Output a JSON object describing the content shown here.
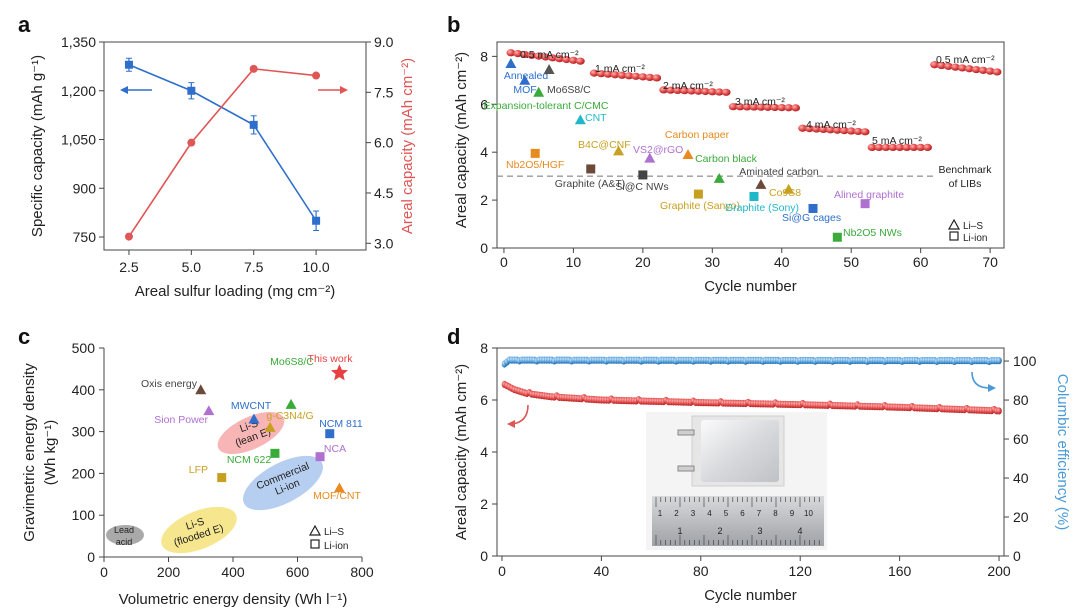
{
  "colors": {
    "blue": "#2f6fcb",
    "red": "#e05555",
    "lightblue": "#4a9ad8",
    "dark": "#222222"
  },
  "chart_data": [
    {
      "panel": "a",
      "type": "line",
      "xlabel": "Areal sulfur loading (mg cm⁻²)",
      "ylabel_left": "Specific capacity (mAh g⁻¹)",
      "ylabel_right": "Areal capacity (mAh cm⁻²)",
      "xticks": [
        "2.5",
        "5.0",
        "7.5",
        "10.0"
      ],
      "yticks_left": [
        "750",
        "900",
        "1,050",
        "1,200",
        "1,350"
      ],
      "yticks_right": [
        "3.0",
        "4.5",
        "6.0",
        "7.5",
        "9.0"
      ],
      "xlim": [
        1.5,
        12.0
      ],
      "ylim_left": [
        710,
        1350
      ],
      "ylim_right": [
        2.8,
        9.0
      ],
      "series": [
        {
          "name": "Specific capacity",
          "axis": "left",
          "x": [
            2.5,
            5.0,
            7.5,
            10.0
          ],
          "values": [
            1280,
            1200,
            1095,
            800
          ],
          "err": [
            20,
            25,
            28,
            30
          ]
        },
        {
          "name": "Areal capacity",
          "axis": "right",
          "x": [
            2.5,
            5.0,
            7.5,
            10.0
          ],
          "values": [
            3.2,
            6.0,
            8.2,
            8.0
          ]
        }
      ]
    },
    {
      "panel": "b",
      "type": "scatter",
      "xlabel": "Cycle number",
      "ylabel": "Areal capacity (mAh cm⁻²)",
      "xticks": [
        "0",
        "10",
        "20",
        "30",
        "40",
        "50",
        "60",
        "70"
      ],
      "yticks": [
        "0",
        "2",
        "4",
        "6",
        "8"
      ],
      "xlim": [
        -1,
        72
      ],
      "ylim": [
        0,
        8.6
      ],
      "benchmark": 3.0,
      "benchmark_label": [
        "Benchmark",
        "of LIBs"
      ],
      "rate_segments": [
        {
          "label": "0.5 mA cm⁻²",
          "x_start": 1,
          "x_end": 11,
          "y_start": 8.15,
          "y_end": 7.8
        },
        {
          "label": "1 mA cm⁻²",
          "x_start": 13,
          "x_end": 22,
          "y_start": 7.3,
          "y_end": 7.1
        },
        {
          "label": "2 mA cm⁻²",
          "x_start": 23,
          "x_end": 32,
          "y_start": 6.6,
          "y_end": 6.5
        },
        {
          "label": "3 mA cm⁻²",
          "x_start": 33,
          "x_end": 42,
          "y_start": 5.9,
          "y_end": 5.85
        },
        {
          "label": "4 mA cm⁻²",
          "x_start": 43,
          "x_end": 52,
          "y_start": 5.0,
          "y_end": 4.85
        },
        {
          "label": "5 mA cm⁻²",
          "x_start": 53,
          "x_end": 61,
          "y_start": 4.2,
          "y_end": 4.2
        },
        {
          "label": "0.5 mA cm⁻²",
          "x_start": 62,
          "x_end": 71,
          "y_start": 7.65,
          "y_end": 7.35
        }
      ],
      "references": [
        {
          "label": "Annealed",
          "x": 1.0,
          "y": 7.7,
          "marker": "triangle",
          "color": "#2f6fcb"
        },
        {
          "label": "MOF",
          "x": 3.0,
          "y": 7.0,
          "marker": "triangle",
          "color": "#2f6fcb"
        },
        {
          "label": "Mo6S8/C",
          "x": 6.5,
          "y": 7.45,
          "marker": "triangle",
          "color": "#555555"
        },
        {
          "label": "Expansion-tolerant C/CMC",
          "x": 5.0,
          "y": 6.5,
          "marker": "triangle",
          "color": "#3aaa3a"
        },
        {
          "label": "CNT",
          "x": 11.0,
          "y": 5.35,
          "marker": "triangle",
          "color": "#20b8c8"
        },
        {
          "label": "Nb2O5/HGF",
          "x": 4.5,
          "y": 3.95,
          "marker": "square",
          "color": "#e88a20"
        },
        {
          "label": "B4C@CNF",
          "x": 16.5,
          "y": 4.05,
          "marker": "triangle",
          "color": "#c8a020"
        },
        {
          "label": "VS2@rGO",
          "x": 21.0,
          "y": 3.75,
          "marker": "triangle",
          "color": "#b070d0"
        },
        {
          "label": "Carbon paper",
          "x": 26.5,
          "y": 3.9,
          "marker": "triangle",
          "color": "#e88a20"
        },
        {
          "label": "Graphite (A&T)",
          "x": 12.5,
          "y": 3.3,
          "marker": "square",
          "color": "#6b4a3a"
        },
        {
          "label": "Si@C NWs",
          "x": 20.0,
          "y": 3.05,
          "marker": "square",
          "color": "#444444"
        },
        {
          "label": "Graphite (Sanyo)",
          "x": 28.0,
          "y": 2.25,
          "marker": "square",
          "color": "#c8a020"
        },
        {
          "label": "Carbon black",
          "x": 31.0,
          "y": 2.9,
          "marker": "triangle",
          "color": "#3aaa3a"
        },
        {
          "label": "Graphite (Sony)",
          "x": 36.0,
          "y": 2.15,
          "marker": "square",
          "color": "#20b8c8"
        },
        {
          "label": "Aminated carbon",
          "x": 37.0,
          "y": 2.65,
          "marker": "triangle",
          "color": "#6b4a3a"
        },
        {
          "label": "Co9S8",
          "x": 41.0,
          "y": 2.45,
          "marker": "triangle",
          "color": "#c8a020"
        },
        {
          "label": "Si@G cages",
          "x": 44.5,
          "y": 1.65,
          "marker": "square",
          "color": "#2f6fcb"
        },
        {
          "label": "Alined graphite",
          "x": 52.0,
          "y": 1.85,
          "marker": "square",
          "color": "#b070d0"
        },
        {
          "label": "Nb2O5 NWs",
          "x": 48.0,
          "y": 0.45,
          "marker": "square",
          "color": "#3aaa3a"
        }
      ],
      "legend": [
        "Li–S",
        "Li-ion"
      ]
    },
    {
      "panel": "c",
      "type": "scatter",
      "xlabel": "Volumetric energy density (Wh l⁻¹)",
      "ylabel": [
        "Gravimetric energy density",
        "(Wh kg⁻¹)"
      ],
      "xticks": [
        "0",
        "200",
        "400",
        "600",
        "800"
      ],
      "yticks": [
        "0",
        "100",
        "200",
        "300",
        "400",
        "500"
      ],
      "xlim": [
        0,
        800
      ],
      "ylim": [
        0,
        500
      ],
      "points": [
        {
          "label": "This work",
          "x": 730,
          "y": 440,
          "marker": "star",
          "color": "#e84040"
        },
        {
          "label": "Oxis energy",
          "x": 300,
          "y": 400,
          "marker": "triangle",
          "color": "#6b4a3a"
        },
        {
          "label": "Sion Power",
          "x": 325,
          "y": 350,
          "marker": "triangle",
          "color": "#b070d0"
        },
        {
          "label": "MWCNT",
          "x": 465,
          "y": 330,
          "marker": "triangle",
          "color": "#2f6fcb"
        },
        {
          "label": "Mo6S8/C",
          "x": 580,
          "y": 365,
          "marker": "triangle",
          "color": "#3aaa3a"
        },
        {
          "label": "g-C3N4/G",
          "x": 515,
          "y": 310,
          "marker": "triangle",
          "color": "#c8a020"
        },
        {
          "label": "NCM 811",
          "x": 700,
          "y": 295,
          "marker": "square",
          "color": "#2f6fcb"
        },
        {
          "label": "NCM 622",
          "x": 530,
          "y": 248,
          "marker": "square",
          "color": "#3aaa3a"
        },
        {
          "label": "NCA",
          "x": 670,
          "y": 240,
          "marker": "square",
          "color": "#b070d0"
        },
        {
          "label": "LFP",
          "x": 365,
          "y": 190,
          "marker": "square",
          "color": "#c8a020"
        },
        {
          "label": "MOF/CNT",
          "x": 730,
          "y": 165,
          "marker": "triangle",
          "color": "#e88a20"
        }
      ],
      "regions": [
        {
          "label": [
            "Li-S",
            "(lean E)"
          ],
          "color": "#f7a8a8"
        },
        {
          "label": [
            "Commercial",
            "Li-ion"
          ],
          "color": "#a9c7ef"
        },
        {
          "label": [
            "Li-S",
            "(flooded E)"
          ],
          "color": "#f5e27a"
        },
        {
          "label": [
            "Lead",
            "acid"
          ],
          "color": "#9a9a9a"
        }
      ],
      "legend": [
        "Li–S",
        "Li-ion"
      ]
    },
    {
      "panel": "d",
      "type": "scatter",
      "xlabel": "Cycle number",
      "ylabel_left": "Areal capacity (mAh cm⁻²)",
      "ylabel_right": "Columbic efficiency (%)",
      "xticks": [
        "0",
        "40",
        "80",
        "120",
        "160",
        "200"
      ],
      "yticks_left": [
        "0",
        "2",
        "4",
        "6",
        "8"
      ],
      "yticks_right": [
        "0",
        "20",
        "40",
        "60",
        "80",
        "100"
      ],
      "xlim": [
        -2,
        202
      ],
      "ylim_left": [
        0,
        8
      ],
      "ylim_right": [
        0,
        106.7
      ],
      "series": [
        {
          "name": "Areal capacity",
          "axis": "left",
          "x": [
            1,
            2,
            5,
            10,
            20,
            40,
            80,
            120,
            160,
            200
          ],
          "values": [
            6.6,
            6.55,
            6.4,
            6.25,
            6.12,
            6.0,
            5.9,
            5.82,
            5.72,
            5.58
          ]
        },
        {
          "name": "Columbic efficiency",
          "axis": "right",
          "x": [
            1,
            3,
            200
          ],
          "values": [
            98.5,
            100.5,
            100.2
          ]
        }
      ],
      "inset": "photo of pouch cell on ruler",
      "ruler_numbers": [
        "1",
        "2",
        "3",
        "4",
        "1",
        "2",
        "3",
        "4",
        "5",
        "6",
        "7",
        "8",
        "9",
        "10"
      ]
    }
  ]
}
